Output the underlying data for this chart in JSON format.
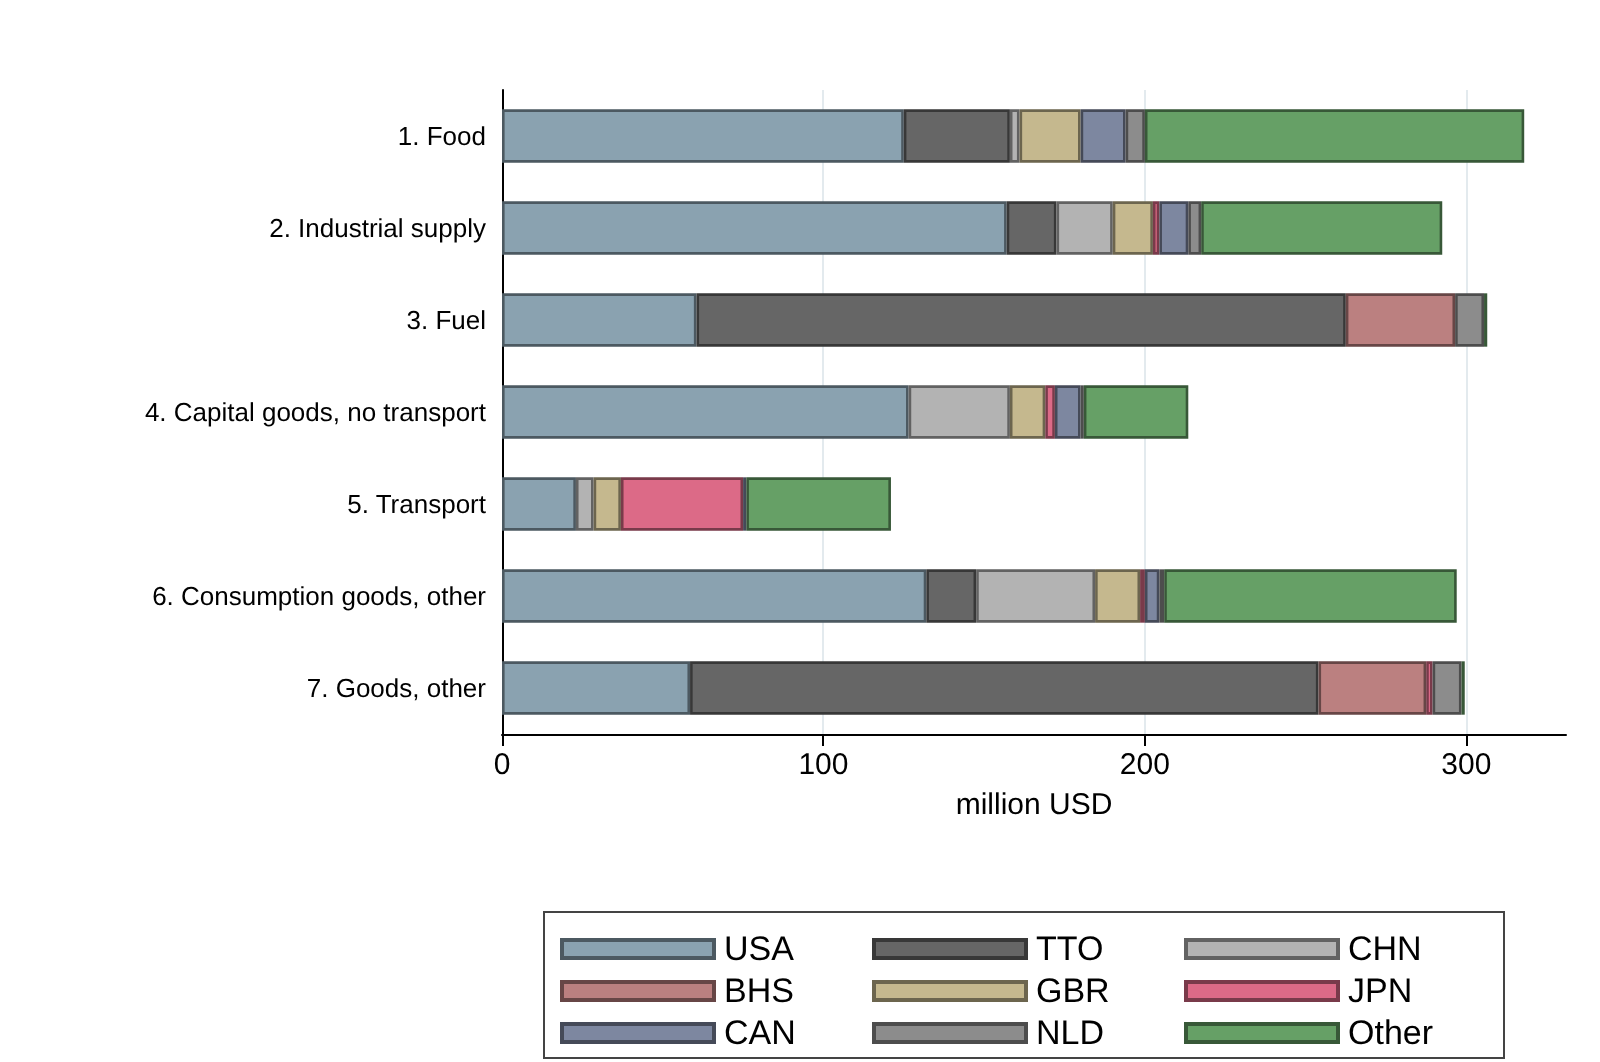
{
  "chart_data": {
    "type": "bar",
    "orientation": "horizontal",
    "stacked": true,
    "xlabel": "million USD",
    "categories": [
      "1. Food",
      "2. Industrial supply",
      "3. Fuel",
      "4. Capital goods, no transport",
      "5. Transport",
      "6. Consumption goods, other",
      "7. Goods, other"
    ],
    "series": [
      {
        "name": "USA",
        "color": "#8aa2b0",
        "values": [
          125,
          157,
          60.5,
          126.5,
          23,
          132,
          58.5
        ]
      },
      {
        "name": "TTO",
        "color": "#666666",
        "values": [
          33,
          15.5,
          202,
          0,
          0,
          15.5,
          195.5
        ]
      },
      {
        "name": "CHN",
        "color": "#b3b3b3",
        "values": [
          3,
          17.5,
          0,
          31.5,
          5.5,
          37,
          0
        ]
      },
      {
        "name": "BHS",
        "color": "#bb8080",
        "values": [
          0,
          0,
          34,
          0,
          0,
          0,
          33.5
        ]
      },
      {
        "name": "GBR",
        "color": "#c5b88e",
        "values": [
          19,
          12.5,
          0,
          11,
          8.5,
          14,
          0
        ]
      },
      {
        "name": "JPN",
        "color": "#dc6a87",
        "values": [
          0,
          2,
          0,
          3,
          38,
          1.5,
          2
        ]
      },
      {
        "name": "CAN",
        "color": "#7d87a0",
        "values": [
          14,
          9,
          0,
          8,
          1,
          4.5,
          0
        ]
      },
      {
        "name": "NLD",
        "color": "#8c8c8c",
        "values": [
          6,
          4,
          9,
          1,
          0,
          1.5,
          9
        ]
      },
      {
        "name": "Other",
        "color": "#66a066",
        "values": [
          118,
          75,
          1,
          32.5,
          45,
          91,
          1
        ]
      }
    ],
    "xlim": [
      0,
      331
    ],
    "xticks": [
      0,
      100,
      200,
      300
    ],
    "grid": "x",
    "legend": "bottom"
  }
}
